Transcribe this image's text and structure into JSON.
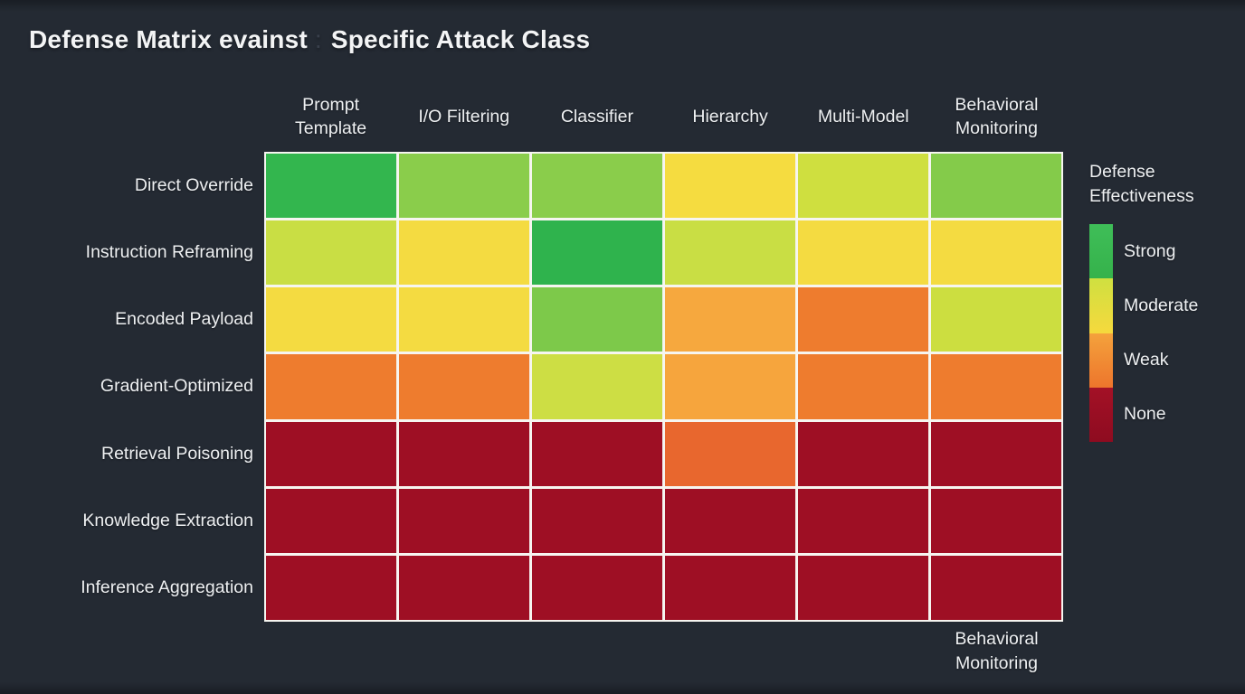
{
  "header": {
    "title_left": "Defense Matrix evainst",
    "title_ghost": ":",
    "title_right": "Specific Attack Class"
  },
  "legend": {
    "title": "Defense\nEffectiveness",
    "position": "right",
    "items": [
      {
        "label": "Strong",
        "color": "#37b54e",
        "color_top": "#3fbe58",
        "color_bottom": "#35b24b"
      },
      {
        "label": "Moderate",
        "color": "#e9dc3e",
        "color_top": "#cfe040",
        "color_bottom": "#f6d93d"
      },
      {
        "label": "Weak",
        "color": "#f09135",
        "color_top": "#f4a23c",
        "color_bottom": "#ed752c"
      },
      {
        "label": "None",
        "color": "#9a0e23",
        "color_top": "#a31126",
        "color_bottom": "#8e0b20"
      }
    ]
  },
  "footer": {
    "bottom_label": "Behavioral\nMonitoring"
  },
  "theme": {
    "background": "#242a33",
    "text_color": "#eef0f2",
    "gridline_color": "#f6f5f0"
  },
  "chart_data": {
    "type": "heatmap",
    "title": "Defense Matrix evainst Specific Attack Class",
    "legend_title": "Defense Effectiveness",
    "legend_position": "right",
    "columns": [
      "Prompt Template",
      "I/O Filtering",
      "Classifier",
      "Hierarchy",
      "Multi-Model",
      "Behavioral Monitoring"
    ],
    "column_lines": [
      [
        "Prompt",
        "Template"
      ],
      [
        "I/O Filtering"
      ],
      [
        "Classifier"
      ],
      [
        "Hierarchy"
      ],
      [
        "Multi-Model"
      ],
      [
        "Behavioral",
        "Monitoring"
      ]
    ],
    "rows": [
      "Direct Override",
      "Instruction Reframing",
      "Encoded Payload",
      "Gradient-Optimized",
      "Retrieval Poisoning",
      "Knowledge Extraction",
      "Inference Aggregation"
    ],
    "levels": [
      [
        "Strong",
        "Strong",
        "Strong",
        "Moderate",
        "Moderate",
        "Strong"
      ],
      [
        "Moderate",
        "Moderate",
        "Strong",
        "Moderate",
        "Moderate",
        "Moderate"
      ],
      [
        "Moderate",
        "Moderate",
        "Strong",
        "Weak",
        "Weak",
        "Moderate"
      ],
      [
        "Weak",
        "Weak",
        "Moderate",
        "Weak",
        "Weak",
        "Weak"
      ],
      [
        "None",
        "None",
        "None",
        "Weak",
        "None",
        "None"
      ],
      [
        "None",
        "None",
        "None",
        "None",
        "None",
        "None"
      ],
      [
        "None",
        "None",
        "None",
        "None",
        "None",
        "None"
      ]
    ],
    "scores_estimated_0_to_1": [
      [
        0.9,
        0.78,
        0.78,
        0.55,
        0.65,
        0.78
      ],
      [
        0.65,
        0.55,
        0.92,
        0.65,
        0.55,
        0.55
      ],
      [
        0.55,
        0.55,
        0.78,
        0.4,
        0.3,
        0.65
      ],
      [
        0.3,
        0.3,
        0.65,
        0.4,
        0.3,
        0.3
      ],
      [
        0.05,
        0.05,
        0.05,
        0.35,
        0.05,
        0.05
      ],
      [
        0.05,
        0.05,
        0.05,
        0.05,
        0.05,
        0.05
      ],
      [
        0.05,
        0.05,
        0.05,
        0.05,
        0.05,
        0.05
      ]
    ],
    "cell_colors": [
      [
        "#33b64e",
        "#8acd4b",
        "#8acd4b",
        "#f5dc40",
        "#cfdf3f",
        "#84cb4a"
      ],
      [
        "#c9de44",
        "#f4db41",
        "#2fb34d",
        "#c9de44",
        "#f4db41",
        "#f4db41"
      ],
      [
        "#f4db41",
        "#f4db41",
        "#7dc94a",
        "#f6a83e",
        "#ee7c2e",
        "#ccde40"
      ],
      [
        "#ee7c2e",
        "#ee7c2e",
        "#cdde44",
        "#f6a53d",
        "#ee7c2e",
        "#ee7c2e"
      ],
      [
        "#9e0f24",
        "#9e0f24",
        "#9e0f24",
        "#e8672e",
        "#9e0f24",
        "#9e0f24"
      ],
      [
        "#9e0f24",
        "#9e0f24",
        "#9e0f24",
        "#9e0f24",
        "#9e0f24",
        "#9e0f24"
      ],
      [
        "#9e0f24",
        "#9e0f24",
        "#9e0f24",
        "#9e0f24",
        "#9e0f24",
        "#9e0f24"
      ]
    ],
    "grid": "white gridlines between cells",
    "extra_bottom_label": "Behavioral Monitoring"
  }
}
